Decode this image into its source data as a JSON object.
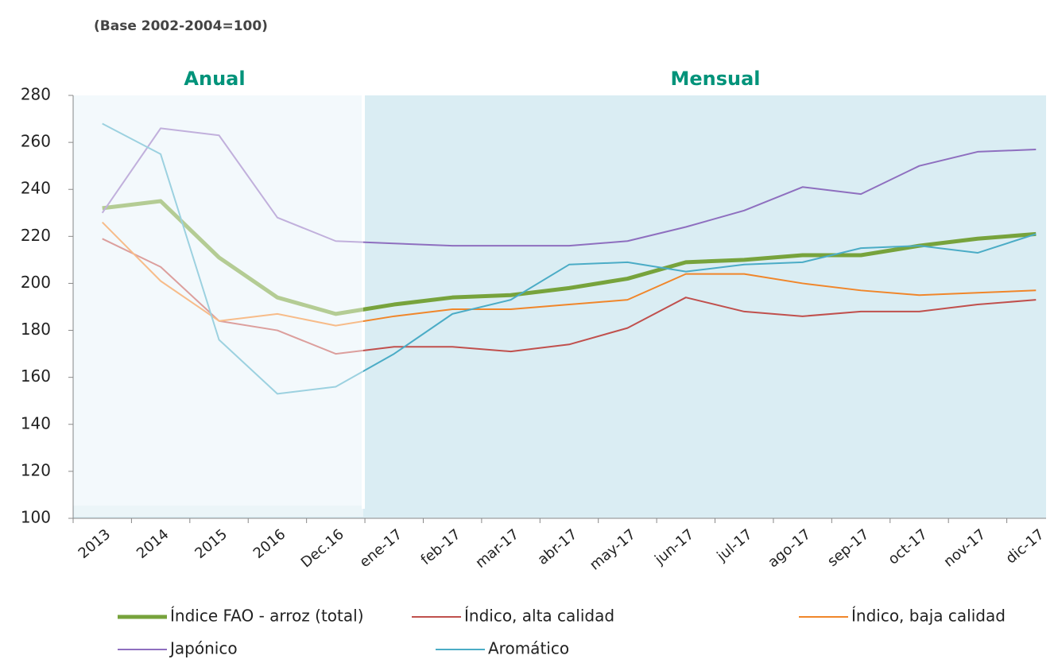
{
  "chart_data": {
    "type": "line",
    "subtitle": "(Base 2002-2004=100)",
    "annotations": [
      "Anual",
      "Mensual"
    ],
    "categories": [
      "2013",
      "2014",
      "2015",
      "2016",
      "Dec.16",
      "ene-17",
      "feb-17",
      "mar-17",
      "abr-17",
      "may-17",
      "jun-17",
      "jul-17",
      "ago-17",
      "sep-17",
      "oct-17",
      "nov-17",
      "dic-17"
    ],
    "series": [
      {
        "name": "Índice FAO - arroz (total)",
        "color": "#77a33c",
        "values": [
          232,
          235,
          211,
          194,
          187,
          191,
          194,
          195,
          198,
          202,
          209,
          210,
          212,
          212,
          216,
          219,
          221
        ]
      },
      {
        "name": "Índico, alta calidad",
        "color": "#c0504d",
        "values": [
          219,
          207,
          184,
          180,
          170,
          173,
          173,
          171,
          174,
          181,
          194,
          188,
          186,
          188,
          188,
          191,
          193
        ]
      },
      {
        "name": "Índico, baja calidad",
        "color": "#f0862a",
        "values": [
          226,
          201,
          184,
          187,
          182,
          186,
          189,
          189,
          191,
          193,
          204,
          204,
          200,
          197,
          195,
          196,
          197
        ]
      },
      {
        "name": "Japónico",
        "color": "#8e6fbf",
        "values": [
          230,
          266,
          263,
          228,
          218,
          217,
          216,
          216,
          216,
          218,
          224,
          231,
          241,
          238,
          250,
          256,
          257
        ]
      },
      {
        "name": "Aromático",
        "color": "#4bacc6",
        "values": [
          268,
          255,
          176,
          153,
          156,
          170,
          187,
          193,
          208,
          209,
          205,
          208,
          209,
          215,
          216,
          213,
          221
        ]
      }
    ],
    "ylim": [
      100,
      280
    ],
    "yticks": [
      100,
      120,
      140,
      160,
      180,
      200,
      220,
      240,
      260,
      280
    ]
  }
}
